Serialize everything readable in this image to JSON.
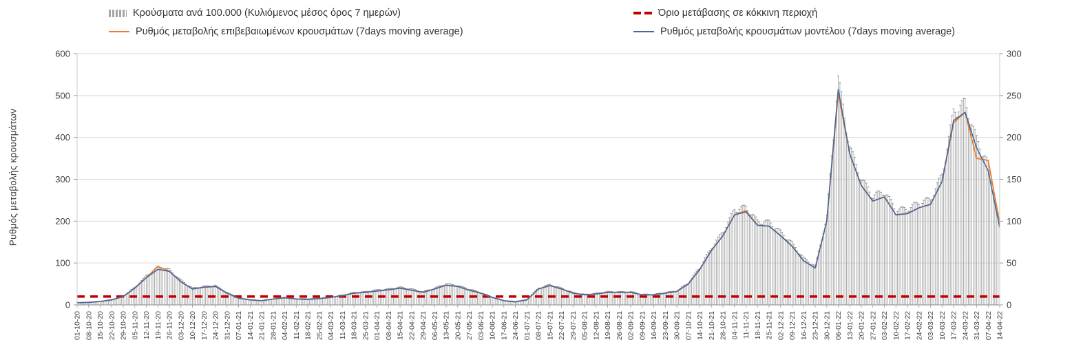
{
  "legend": {
    "bars_label": "Κρούσματα ανά 100.000 (Κυλιόμενος μέσος όρος 7 ημερών)",
    "threshold_label": "Όριο μετάβασης σε κόκκινη περιοχή",
    "confirmed_label": "Ρυθμός μεταβολής επιβεβαιωμένων κρουσμάτων (7days moving average)",
    "model_label": "Ρυθμός μεταβολής κρουσμάτων μοντέλου (7days moving average)"
  },
  "y_axis_title": "Ρυθμός μεταβολής κρουσμάτων",
  "colors": {
    "bars": "#a6a6a6",
    "bar_caps": "#8a8a8a",
    "threshold": "#c00000",
    "confirmed": "#ed7d31",
    "model": "#44689d",
    "grid": "#d9d9d9",
    "axis": "#9a9a9a",
    "tick_text": "#404040"
  },
  "chart_data": {
    "type": "composite",
    "title": "",
    "x_labels": [
      "01-10-20",
      "08-10-20",
      "15-10-20",
      "22-10-20",
      "29-10-20",
      "05-11-20",
      "12-11-20",
      "19-11-20",
      "26-11-20",
      "03-12-20",
      "10-12-20",
      "17-12-20",
      "24-12-20",
      "31-12-20",
      "07-01-21",
      "14-01-21",
      "21-01-21",
      "28-01-21",
      "04-02-21",
      "11-02-21",
      "18-02-21",
      "25-02-21",
      "04-03-21",
      "11-03-21",
      "18-03-21",
      "25-03-21",
      "01-04-21",
      "08-04-21",
      "15-04-21",
      "22-04-21",
      "29-04-21",
      "06-05-21",
      "13-05-21",
      "20-05-21",
      "27-05-21",
      "03-06-21",
      "10-06-21",
      "17-06-21",
      "24-06-21",
      "01-07-21",
      "08-07-21",
      "15-07-21",
      "22-07-21",
      "29-07-21",
      "05-08-21",
      "12-08-21",
      "19-08-21",
      "26-08-21",
      "02-09-21",
      "09-09-21",
      "16-09-21",
      "23-09-21",
      "30-09-21",
      "07-10-21",
      "14-10-21",
      "21-10-21",
      "28-10-21",
      "04-11-21",
      "11-11-21",
      "18-11-21",
      "25-11-21",
      "02-12-21",
      "09-12-21",
      "16-12-21",
      "23-12-21",
      "30-12-21",
      "06-01-22",
      "13-01-22",
      "20-01-22",
      "27-01-22",
      "03-02-22",
      "10-02-22",
      "17-02-22",
      "24-02-22",
      "03-03-22",
      "10-03-22",
      "17-03-22",
      "24-03-22",
      "31-03-22",
      "07-04-22",
      "14-04-22"
    ],
    "left_axis": {
      "label": "Ρυθμός μεταβολής κρουσμάτων",
      "min": 0,
      "max": 600,
      "ticks": [
        0,
        100,
        200,
        300,
        400,
        500,
        600
      ]
    },
    "right_axis": {
      "label": "",
      "min": 0,
      "max": 300,
      "ticks": [
        0,
        50,
        100,
        150,
        200,
        250,
        300
      ]
    },
    "grid": true,
    "legend_position": "top",
    "series": [
      {
        "name": "Κρούσματα ανά 100.000 (Κυλιόμενος μέσος όρος 7 ημερών)",
        "type": "bar",
        "axis": "right",
        "values": [
          3,
          3,
          4,
          6,
          10,
          20,
          33,
          43,
          40,
          28,
          19,
          21,
          22,
          14,
          8,
          6,
          5,
          7,
          9,
          7,
          7,
          8,
          9,
          11,
          14,
          15,
          17,
          18,
          20,
          18,
          15,
          19,
          24,
          22,
          18,
          14,
          9,
          5,
          4,
          6,
          19,
          23,
          19,
          14,
          12,
          13,
          15,
          15,
          15,
          12,
          12,
          14,
          16,
          25,
          43,
          65,
          83,
          108,
          111,
          95,
          94,
          83,
          70,
          53,
          44,
          100,
          258,
          180,
          143,
          124,
          129,
          108,
          109,
          116,
          120,
          148,
          220,
          230,
          188,
          160,
          93
        ]
      },
      {
        "name": "Ρυθμός μεταβολής επιβεβαιωμένων κρουσμάτων (7days moving average)",
        "type": "line",
        "axis": "left",
        "values": [
          5,
          6,
          8,
          12,
          20,
          40,
          65,
          92,
          80,
          55,
          38,
          42,
          44,
          28,
          16,
          12,
          10,
          14,
          17,
          14,
          13,
          15,
          18,
          22,
          28,
          30,
          33,
          36,
          40,
          35,
          30,
          38,
          47,
          44,
          35,
          28,
          18,
          10,
          7,
          12,
          38,
          46,
          38,
          28,
          24,
          26,
          30,
          30,
          30,
          24,
          24,
          28,
          32,
          50,
          85,
          130,
          165,
          215,
          225,
          190,
          188,
          165,
          140,
          105,
          88,
          200,
          505,
          360,
          285,
          248,
          258,
          215,
          218,
          232,
          240,
          295,
          435,
          460,
          350,
          345,
          195
        ]
      },
      {
        "name": "Ρυθμός μεταβολής κρουσμάτων μοντέλου (7days moving average)",
        "type": "line",
        "axis": "left",
        "values": [
          5,
          6,
          8,
          12,
          20,
          40,
          65,
          85,
          80,
          55,
          38,
          42,
          44,
          28,
          16,
          12,
          10,
          14,
          17,
          14,
          13,
          15,
          18,
          22,
          28,
          30,
          33,
          36,
          40,
          35,
          30,
          38,
          47,
          44,
          35,
          28,
          18,
          10,
          7,
          12,
          38,
          46,
          38,
          28,
          24,
          26,
          30,
          30,
          30,
          24,
          24,
          28,
          32,
          50,
          85,
          130,
          165,
          215,
          222,
          190,
          188,
          165,
          140,
          105,
          88,
          200,
          515,
          360,
          285,
          248,
          258,
          215,
          218,
          232,
          240,
          295,
          440,
          460,
          375,
          320,
          185
        ]
      },
      {
        "name": "Όριο μετάβασης σε κόκκινη περιοχή",
        "type": "threshold",
        "axis": "left",
        "value": 20
      }
    ]
  }
}
